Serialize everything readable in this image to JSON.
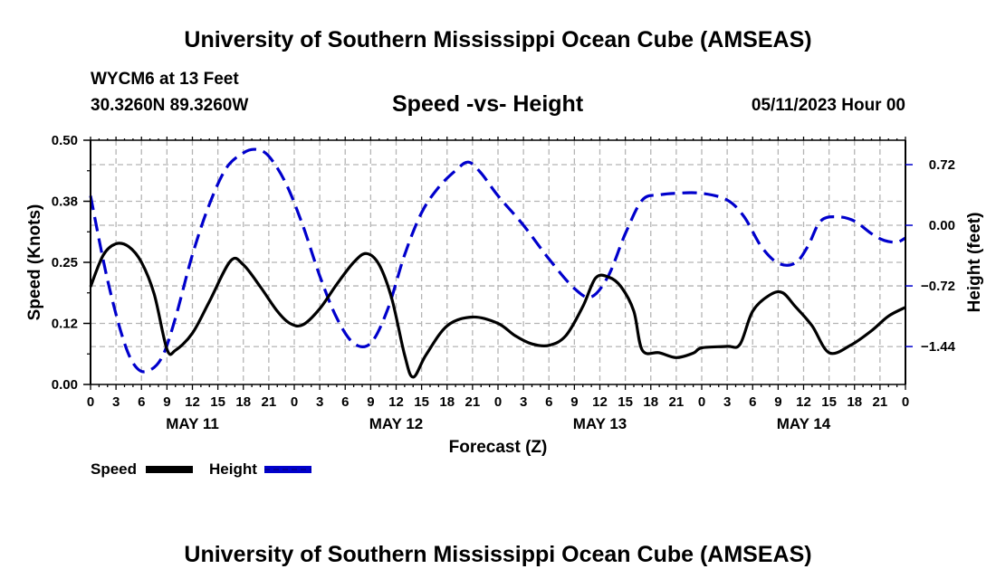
{
  "header": {
    "title": "University of Southern Mississippi Ocean Cube (AMSEAS)",
    "station": "WYCM6 at 13 Feet",
    "coords": "30.3260N  89.3260W",
    "subtitle": "Speed -vs- Height",
    "datetime": "05/11/2023 Hour 00"
  },
  "footer": {
    "title": "University of Southern Mississippi Ocean Cube (AMSEAS)"
  },
  "legend": {
    "items": [
      {
        "label": "Speed",
        "color": "#000000",
        "style": "solid"
      },
      {
        "label": "Height",
        "color": "#0000cc",
        "style": "dashed"
      }
    ]
  },
  "chart_data": {
    "type": "line",
    "title": "Speed -vs- Height",
    "xlabel": "Forecast (Z)",
    "ylabel": "Speed (Knots)",
    "y2label": "Height (feet)",
    "xlim": [
      0,
      96
    ],
    "ylim": [
      0,
      0.5
    ],
    "y2lim": [
      -1.89,
      1.01
    ],
    "grid": true,
    "legend_position": "bottom-left",
    "x_tick_labels": [
      "0",
      "3",
      "6",
      "9",
      "12",
      "15",
      "18",
      "21",
      "0",
      "3",
      "6",
      "9",
      "12",
      "15",
      "18",
      "21",
      "0",
      "3",
      "6",
      "9",
      "12",
      "15",
      "18",
      "21",
      "0",
      "3",
      "6",
      "9",
      "12",
      "15",
      "18",
      "21",
      "0"
    ],
    "date_labels": [
      {
        "label": "MAY 11",
        "hour": 12
      },
      {
        "label": "MAY 12",
        "hour": 36
      },
      {
        "label": "MAY 13",
        "hour": 60
      },
      {
        "label": "MAY 14",
        "hour": 84
      }
    ],
    "y_ticks": [
      {
        "value": 0.0,
        "label": "0.00"
      },
      {
        "value": 0.125,
        "label": "0.12"
      },
      {
        "value": 0.25,
        "label": "0.25"
      },
      {
        "value": 0.375,
        "label": "0.38"
      },
      {
        "value": 0.5,
        "label": "0.50"
      }
    ],
    "y2_ticks": [
      {
        "value": 0.72,
        "label": "0.72"
      },
      {
        "value": 0.0,
        "label": "0.00"
      },
      {
        "value": -0.72,
        "label": "−0.72"
      },
      {
        "value": -1.44,
        "label": "−1.44"
      }
    ],
    "series": [
      {
        "name": "Speed",
        "axis": "left",
        "color": "#000000",
        "x": [
          0,
          1.5,
          3,
          4.5,
          6,
          7.5,
          9,
          10,
          12,
          14,
          16.5,
          18,
          20,
          22,
          23.5,
          25,
          27,
          29,
          31,
          32.5,
          34,
          35.5,
          37,
          38,
          39.5,
          42,
          45,
          48,
          50,
          52,
          54,
          56,
          58,
          59.5,
          61,
          62.5,
          64,
          65,
          67,
          69,
          71,
          72,
          75,
          76.5,
          78,
          80,
          81.5,
          83,
          85,
          87,
          89.5,
          92,
          94,
          96
        ],
        "values": [
          0.2,
          0.265,
          0.288,
          0.282,
          0.25,
          0.185,
          0.072,
          0.07,
          0.105,
          0.17,
          0.253,
          0.245,
          0.2,
          0.15,
          0.125,
          0.122,
          0.155,
          0.205,
          0.25,
          0.268,
          0.245,
          0.175,
          0.06,
          0.015,
          0.06,
          0.12,
          0.138,
          0.125,
          0.1,
          0.083,
          0.08,
          0.1,
          0.16,
          0.218,
          0.22,
          0.2,
          0.15,
          0.07,
          0.065,
          0.055,
          0.064,
          0.075,
          0.078,
          0.082,
          0.15,
          0.183,
          0.188,
          0.16,
          0.12,
          0.065,
          0.08,
          0.11,
          0.14,
          0.158
        ]
      },
      {
        "name": "Height",
        "axis": "right",
        "color": "#0000cc",
        "x": [
          0,
          2,
          4,
          5.5,
          7,
          8.5,
          10,
          12,
          14,
          16,
          18,
          19.5,
          21,
          23,
          25,
          27,
          29,
          31,
          33,
          35,
          37,
          39,
          41,
          43,
          44.5,
          46,
          48,
          51,
          54,
          57,
          59,
          61,
          63,
          65,
          67,
          69,
          72,
          75,
          77,
          79,
          81,
          83,
          84.5,
          86,
          88,
          90,
          92,
          93.5,
          95,
          96
        ],
        "values": [
          0.35,
          -0.65,
          -1.4,
          -1.7,
          -1.72,
          -1.55,
          -1.1,
          -0.35,
          0.25,
          0.68,
          0.86,
          0.9,
          0.82,
          0.5,
          0.0,
          -0.6,
          -1.1,
          -1.4,
          -1.4,
          -1.0,
          -0.35,
          0.15,
          0.45,
          0.65,
          0.75,
          0.62,
          0.35,
          0.0,
          -0.4,
          -0.75,
          -0.85,
          -0.6,
          -0.1,
          0.3,
          0.36,
          0.38,
          0.38,
          0.3,
          0.1,
          -0.25,
          -0.45,
          -0.45,
          -0.25,
          0.05,
          0.1,
          0.05,
          -0.1,
          -0.18,
          -0.2,
          -0.15
        ]
      }
    ]
  }
}
